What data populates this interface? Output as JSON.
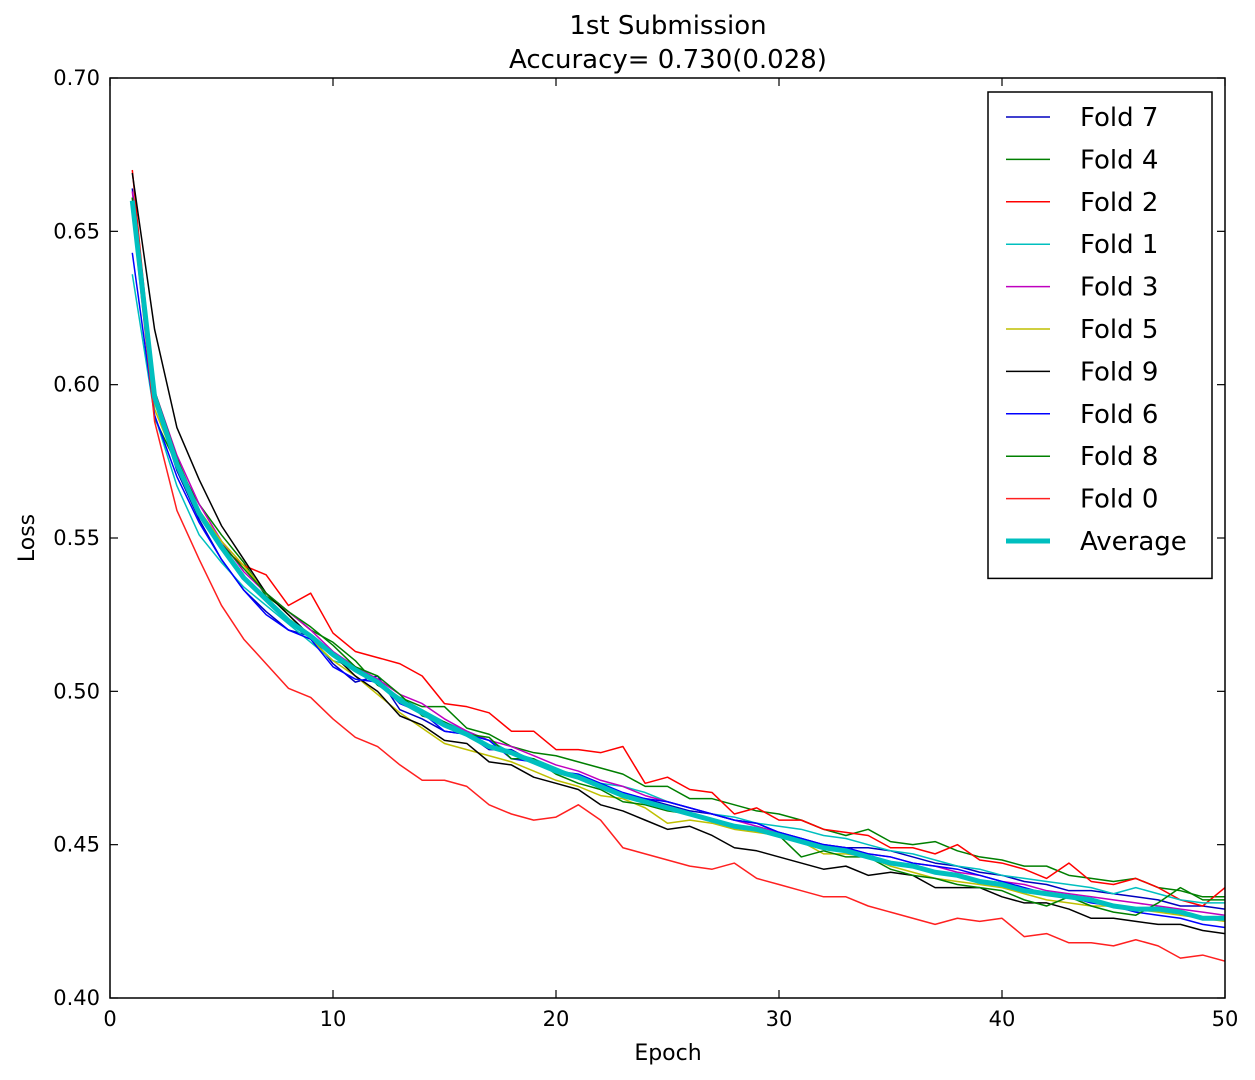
{
  "chart_data": {
    "type": "line",
    "title": "1st Submission",
    "subtitle": "Accuracy= 0.730(0.028)",
    "xlabel": "Epoch",
    "ylabel": "Loss",
    "xlim": [
      0,
      50
    ],
    "ylim": [
      0.4,
      0.7
    ],
    "xticks": [
      0,
      10,
      20,
      30,
      40,
      50
    ],
    "yticks": [
      0.4,
      0.45,
      0.5,
      0.55,
      0.6,
      0.65,
      0.7
    ],
    "ytick_labels": [
      "0.40",
      "0.45",
      "0.50",
      "0.55",
      "0.60",
      "0.65",
      "0.70"
    ],
    "grid": false,
    "legend_position": "top-right",
    "series": [
      {
        "name": "Fold 7",
        "color": "#0000bf",
        "width": 1.5,
        "x_start": 1,
        "values": [
          0.664,
          0.595,
          0.572,
          0.556,
          0.543,
          0.533,
          0.526,
          0.52,
          0.518,
          0.509,
          0.503,
          0.505,
          0.494,
          0.491,
          0.487,
          0.486,
          0.481,
          0.481,
          0.477,
          0.474,
          0.472,
          0.469,
          0.466,
          0.465,
          0.463,
          0.461,
          0.46,
          0.458,
          0.457,
          0.454,
          0.452,
          0.45,
          0.449,
          0.449,
          0.448,
          0.446,
          0.444,
          0.443,
          0.441,
          0.44,
          0.438,
          0.437,
          0.435,
          0.435,
          0.434,
          0.433,
          0.432,
          0.43,
          0.43,
          0.429
        ]
      },
      {
        "name": "Fold 4",
        "color": "#007f00",
        "width": 1.5,
        "x_start": 1,
        "values": [
          0.661,
          0.589,
          0.574,
          0.561,
          0.551,
          0.542,
          0.531,
          0.526,
          0.52,
          0.516,
          0.51,
          0.502,
          0.498,
          0.495,
          0.495,
          0.488,
          0.486,
          0.482,
          0.48,
          0.479,
          0.477,
          0.475,
          0.473,
          0.469,
          0.469,
          0.465,
          0.465,
          0.463,
          0.461,
          0.46,
          0.458,
          0.455,
          0.453,
          0.455,
          0.451,
          0.45,
          0.451,
          0.448,
          0.446,
          0.445,
          0.443,
          0.443,
          0.44,
          0.439,
          0.438,
          0.439,
          0.436,
          0.435,
          0.433,
          0.433
        ]
      },
      {
        "name": "Fold 2",
        "color": "#ff0000",
        "width": 1.5,
        "x_start": 1,
        "values": [
          0.67,
          0.596,
          0.573,
          0.558,
          0.547,
          0.541,
          0.538,
          0.528,
          0.532,
          0.519,
          0.513,
          0.511,
          0.509,
          0.505,
          0.496,
          0.495,
          0.493,
          0.487,
          0.487,
          0.481,
          0.481,
          0.48,
          0.482,
          0.47,
          0.472,
          0.468,
          0.467,
          0.46,
          0.462,
          0.458,
          0.458,
          0.455,
          0.454,
          0.453,
          0.449,
          0.449,
          0.447,
          0.45,
          0.445,
          0.444,
          0.442,
          0.439,
          0.444,
          0.438,
          0.437,
          0.439,
          0.436,
          0.432,
          0.43,
          0.436
        ]
      },
      {
        "name": "Fold 1",
        "color": "#00bfbf",
        "width": 1.5,
        "x_start": 1,
        "values": [
          0.636,
          0.59,
          0.567,
          0.551,
          0.542,
          0.534,
          0.528,
          0.522,
          0.516,
          0.51,
          0.508,
          0.503,
          0.498,
          0.494,
          0.49,
          0.487,
          0.484,
          0.48,
          0.478,
          0.475,
          0.472,
          0.47,
          0.469,
          0.467,
          0.464,
          0.462,
          0.46,
          0.459,
          0.457,
          0.456,
          0.455,
          0.453,
          0.452,
          0.45,
          0.448,
          0.447,
          0.445,
          0.443,
          0.442,
          0.44,
          0.439,
          0.438,
          0.437,
          0.436,
          0.434,
          0.436,
          0.434,
          0.432,
          0.431,
          0.431
        ]
      },
      {
        "name": "Fold 3",
        "color": "#bf00bf",
        "width": 1.5,
        "x_start": 1,
        "values": [
          0.663,
          0.598,
          0.577,
          0.561,
          0.549,
          0.539,
          0.532,
          0.526,
          0.52,
          0.513,
          0.508,
          0.504,
          0.499,
          0.496,
          0.491,
          0.487,
          0.484,
          0.482,
          0.479,
          0.476,
          0.474,
          0.471,
          0.469,
          0.466,
          0.464,
          0.462,
          0.46,
          0.458,
          0.456,
          0.454,
          0.452,
          0.45,
          0.449,
          0.447,
          0.446,
          0.444,
          0.443,
          0.441,
          0.44,
          0.438,
          0.437,
          0.435,
          0.434,
          0.433,
          0.432,
          0.431,
          0.43,
          0.429,
          0.428,
          0.427
        ]
      },
      {
        "name": "Fold 5",
        "color": "#bfbf00",
        "width": 1.5,
        "x_start": 1,
        "values": [
          0.659,
          0.592,
          0.574,
          0.559,
          0.549,
          0.541,
          0.532,
          0.525,
          0.517,
          0.51,
          0.505,
          0.499,
          0.493,
          0.488,
          0.483,
          0.481,
          0.479,
          0.477,
          0.474,
          0.471,
          0.469,
          0.466,
          0.465,
          0.462,
          0.457,
          0.458,
          0.457,
          0.455,
          0.454,
          0.453,
          0.451,
          0.447,
          0.447,
          0.446,
          0.443,
          0.441,
          0.439,
          0.438,
          0.437,
          0.436,
          0.434,
          0.432,
          0.431,
          0.43,
          0.43,
          0.429,
          0.428,
          0.427,
          0.426,
          0.425
        ]
      },
      {
        "name": "Fold 9",
        "color": "#000000",
        "width": 1.5,
        "x_start": 1,
        "values": [
          0.669,
          0.618,
          0.586,
          0.569,
          0.554,
          0.543,
          0.532,
          0.525,
          0.518,
          0.512,
          0.505,
          0.5,
          0.492,
          0.489,
          0.484,
          0.483,
          0.477,
          0.476,
          0.472,
          0.47,
          0.468,
          0.463,
          0.461,
          0.458,
          0.455,
          0.456,
          0.453,
          0.449,
          0.448,
          0.446,
          0.444,
          0.442,
          0.443,
          0.44,
          0.441,
          0.44,
          0.436,
          0.436,
          0.436,
          0.433,
          0.431,
          0.431,
          0.429,
          0.426,
          0.426,
          0.425,
          0.424,
          0.424,
          0.422,
          0.421
        ]
      },
      {
        "name": "Fold 6",
        "color": "#0000ff",
        "width": 1.5,
        "x_start": 1,
        "values": [
          0.643,
          0.59,
          0.57,
          0.555,
          0.543,
          0.533,
          0.525,
          0.52,
          0.517,
          0.508,
          0.504,
          0.503,
          0.496,
          0.493,
          0.487,
          0.486,
          0.484,
          0.478,
          0.477,
          0.474,
          0.473,
          0.47,
          0.467,
          0.465,
          0.464,
          0.462,
          0.46,
          0.458,
          0.457,
          0.454,
          0.452,
          0.45,
          0.449,
          0.447,
          0.446,
          0.444,
          0.443,
          0.442,
          0.44,
          0.438,
          0.436,
          0.434,
          0.433,
          0.431,
          0.43,
          0.428,
          0.427,
          0.426,
          0.424,
          0.423
        ]
      },
      {
        "name": "Fold 8",
        "color": "#008000",
        "width": 1.5,
        "x_start": 1,
        "values": [
          0.661,
          0.598,
          0.576,
          0.559,
          0.548,
          0.54,
          0.532,
          0.526,
          0.521,
          0.515,
          0.508,
          0.505,
          0.499,
          0.492,
          0.49,
          0.486,
          0.485,
          0.478,
          0.478,
          0.473,
          0.47,
          0.468,
          0.464,
          0.463,
          0.461,
          0.46,
          0.458,
          0.456,
          0.455,
          0.453,
          0.446,
          0.448,
          0.446,
          0.446,
          0.442,
          0.44,
          0.439,
          0.437,
          0.436,
          0.435,
          0.432,
          0.43,
          0.433,
          0.43,
          0.428,
          0.427,
          0.431,
          0.436,
          0.432,
          0.432
        ]
      },
      {
        "name": "Fold 0",
        "color": "#ff2020",
        "width": 1.5,
        "x_start": 1,
        "values": [
          0.657,
          0.588,
          0.559,
          0.543,
          0.528,
          0.517,
          0.509,
          0.501,
          0.498,
          0.491,
          0.485,
          0.482,
          0.476,
          0.471,
          0.471,
          0.469,
          0.463,
          0.46,
          0.458,
          0.459,
          0.463,
          0.458,
          0.449,
          0.447,
          0.445,
          0.443,
          0.442,
          0.444,
          0.439,
          0.437,
          0.435,
          0.433,
          0.433,
          0.43,
          0.428,
          0.426,
          0.424,
          0.426,
          0.425,
          0.426,
          0.42,
          0.421,
          0.418,
          0.418,
          0.417,
          0.419,
          0.417,
          0.413,
          0.414,
          0.412
        ]
      },
      {
        "name": "Average",
        "color": "#00bfbf",
        "width": 5,
        "x_start": 1,
        "values": [
          0.66,
          0.596,
          0.574,
          0.558,
          0.547,
          0.537,
          0.53,
          0.523,
          0.518,
          0.512,
          0.507,
          0.503,
          0.497,
          0.493,
          0.489,
          0.486,
          0.482,
          0.48,
          0.477,
          0.474,
          0.472,
          0.469,
          0.466,
          0.464,
          0.462,
          0.46,
          0.458,
          0.456,
          0.455,
          0.453,
          0.451,
          0.449,
          0.448,
          0.446,
          0.444,
          0.443,
          0.441,
          0.44,
          0.438,
          0.437,
          0.435,
          0.434,
          0.433,
          0.432,
          0.43,
          0.429,
          0.429,
          0.428,
          0.426,
          0.426
        ]
      }
    ]
  }
}
